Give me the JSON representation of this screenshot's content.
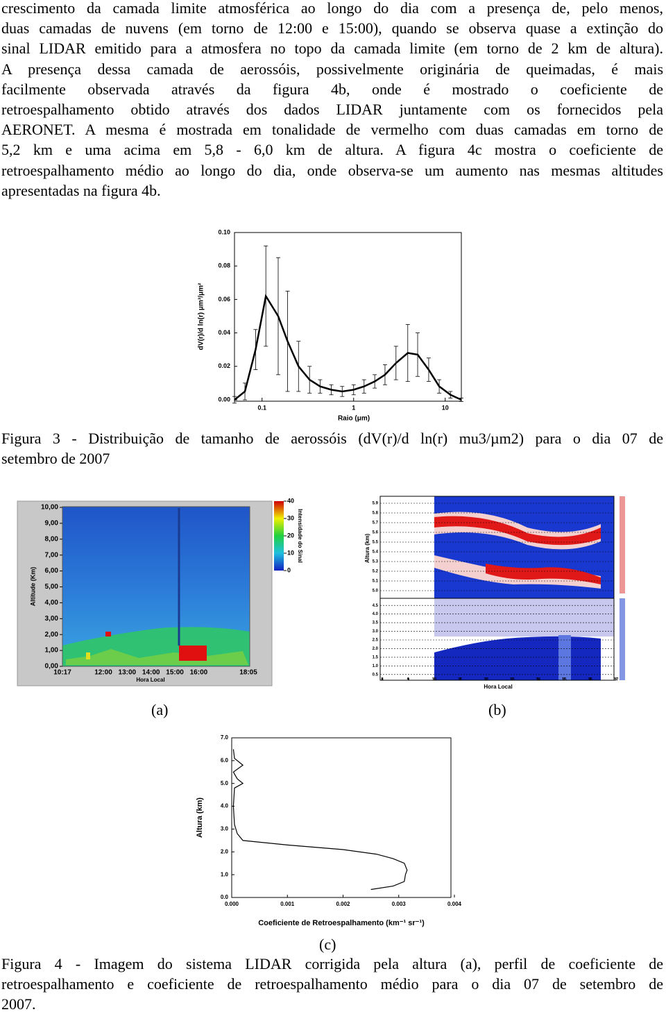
{
  "paragraph": {
    "lines": [
      "crescimento da camada limite atmosférica ao longo do dia com a presença de, pelo menos,",
      "duas camadas de nuvens (em torno de 12:00 e 15:00), quando se observa quase a extinção do",
      "sinal LIDAR emitido para a atmosfera no topo da camada limite (em torno de 2 km de altura).",
      "A presença dessa camada de aerossóis, possivelmente originária de queimadas, é mais",
      "facilmente observada através da figura 4b, onde é mostrado o coeficiente de",
      "retroespalhamento obtido através dos dados LIDAR juntamente com os fornecidos pela",
      "AERONET. A mesma é mostrada em tonalidade de vermelho com duas camadas em torno de",
      "5,2 km e uma acima em 5,8 - 6,0 km de altura. A figura 4c mostra o coeficiente de",
      "retroespalhamento médio ao longo do dia, onde observa-se um aumento nas mesmas altitudes",
      "apresentadas na figura 4b."
    ]
  },
  "caption3": {
    "lines": [
      "Figura 3 - Distribuição de tamanho de aerossóis (dV(r)/d ln(r) mu3/µm2) para o dia 07 de",
      "setembro de 2007"
    ]
  },
  "panel_labels": [
    "(a)",
    "(b)",
    "(c)"
  ],
  "caption4": {
    "lines": [
      "Figura 4 - Imagem do sistema LIDAR corrigida pela altura (a), perfil de coeficiente de",
      "retroespalhamento e coeficiente de retroespalhamento médio para o dia 07 de setembro de",
      "2007."
    ]
  },
  "chart_data": [
    {
      "type": "errorline",
      "y_label": "dV(r)/d ln(r) μm³/μm²",
      "x_label": "Raio (μm)",
      "x": [
        0.05,
        0.065,
        0.085,
        0.11,
        0.15,
        0.19,
        0.25,
        0.33,
        0.43,
        0.57,
        0.75,
        1.0,
        1.3,
        1.7,
        2.2,
        2.9,
        3.9,
        5.0,
        6.6,
        8.6,
        11.4,
        15
      ],
      "values": [
        0.0,
        0.005,
        0.03,
        0.062,
        0.05,
        0.035,
        0.02,
        0.012,
        0.008,
        0.006,
        0.005,
        0.006,
        0.008,
        0.011,
        0.015,
        0.022,
        0.028,
        0.027,
        0.018,
        0.008,
        0.003,
        0.0
      ],
      "errors": [
        0.002,
        0.005,
        0.012,
        0.03,
        0.035,
        0.03,
        0.015,
        0.008,
        0.004,
        0.003,
        0.003,
        0.003,
        0.004,
        0.004,
        0.006,
        0.01,
        0.017,
        0.013,
        0.007,
        0.004,
        0.002,
        0.001
      ],
      "color": "#000000",
      "x_log": true,
      "xlim": [
        0.05,
        15
      ],
      "ylim": [
        0,
        0.1
      ],
      "xticks": [
        0.1,
        1,
        10
      ],
      "yticks": [
        {
          "value": 0,
          "label": "0.00"
        },
        0.02,
        0.04,
        0.06,
        0.08,
        {
          "value": 0.1,
          "label": "0.10"
        }
      ]
    },
    {
      "type": "heatmap",
      "y_label": "Altitude (Km)",
      "x_label": "Hora Local",
      "colorbar_label": "Intensidade do Sinal",
      "x_tick_labels": [
        "10:17",
        "12:00",
        "13:00",
        "14:00",
        "15:00",
        "16:00",
        "18:05"
      ],
      "ylim": [
        0,
        10
      ],
      "yticks": [
        {
          "value": 0,
          "label": "0,00"
        },
        {
          "value": 1,
          "label": "1,00"
        },
        {
          "value": 2,
          "label": "2,00"
        },
        {
          "value": 3,
          "label": "3,00"
        },
        {
          "value": 4,
          "label": "4,00"
        },
        {
          "value": 5,
          "label": "5,00"
        },
        {
          "value": 6,
          "label": "6,00"
        },
        {
          "value": 7,
          "label": "7,00"
        },
        {
          "value": 8,
          "label": "8,00"
        },
        {
          "value": 9,
          "label": "9,00"
        },
        {
          "value": 10,
          "label": "10,00"
        }
      ],
      "clim": [
        0,
        40
      ],
      "cticks": [
        0,
        10,
        20,
        30,
        40
      ]
    },
    {
      "type": "heatmap2",
      "y_label": "Altura (km)",
      "x_label": "Hora Local",
      "xlim": [
        8,
        17
      ],
      "xticks": [
        8,
        9,
        10,
        11,
        12,
        13,
        14,
        15,
        16,
        17
      ],
      "upper_ylim": [
        4.95,
        5.95
      ],
      "upper_yticks": [
        {
          "value": 5,
          "label": "5.0"
        },
        5.1,
        5.2,
        5.3,
        5.4,
        5.5,
        5.6,
        5.7,
        5.8,
        5.9
      ],
      "lower_ylim": [
        0.25,
        4.75
      ],
      "lower_yticks": [
        0.5,
        {
          "value": 1,
          "label": "1.0"
        },
        1.5,
        {
          "value": 2,
          "label": "2.0"
        },
        2.5,
        {
          "value": 3,
          "label": "3.0"
        },
        3.5,
        {
          "value": 4,
          "label": "4.0"
        },
        4.5
      ]
    },
    {
      "type": "profile",
      "y_label": "Altura (km)",
      "x_label": "Coeficiente de Retroespalhamento (km⁻¹ sr⁻¹)",
      "x": [
        0.0025,
        0.0029,
        0.0031,
        0.00312,
        0.00315,
        0.0031,
        0.0029,
        0.0026,
        0.002,
        0.001,
        0.0002,
        0.0001,
        5e-05,
        3e-05,
        5e-05,
        0.0002,
        0.0001,
        3e-05,
        0.0002,
        5e-05,
        3e-05
      ],
      "y": [
        0.35,
        0.5,
        0.7,
        1.0,
        1.2,
        1.5,
        1.7,
        1.9,
        2.1,
        2.3,
        2.5,
        2.8,
        3.2,
        4.0,
        4.8,
        5.0,
        5.2,
        5.5,
        5.8,
        6.1,
        6.5
      ],
      "color": "#000000",
      "xlim": [
        0,
        0.004
      ],
      "ylim": [
        0,
        7
      ],
      "xticks": [
        {
          "value": 0,
          "label": "0.000"
        },
        0.001,
        0.002,
        0.003,
        0.004
      ],
      "yticks": [
        {
          "value": 0,
          "label": "0.0"
        },
        {
          "value": 1,
          "label": "1.0"
        },
        {
          "value": 2,
          "label": "2.0"
        },
        {
          "value": 3,
          "label": "3.0"
        },
        {
          "value": 4,
          "label": "4.0"
        },
        {
          "value": 5,
          "label": "5.0"
        },
        {
          "value": 6,
          "label": "6.0"
        },
        {
          "value": 7,
          "label": "7.0"
        }
      ]
    }
  ]
}
